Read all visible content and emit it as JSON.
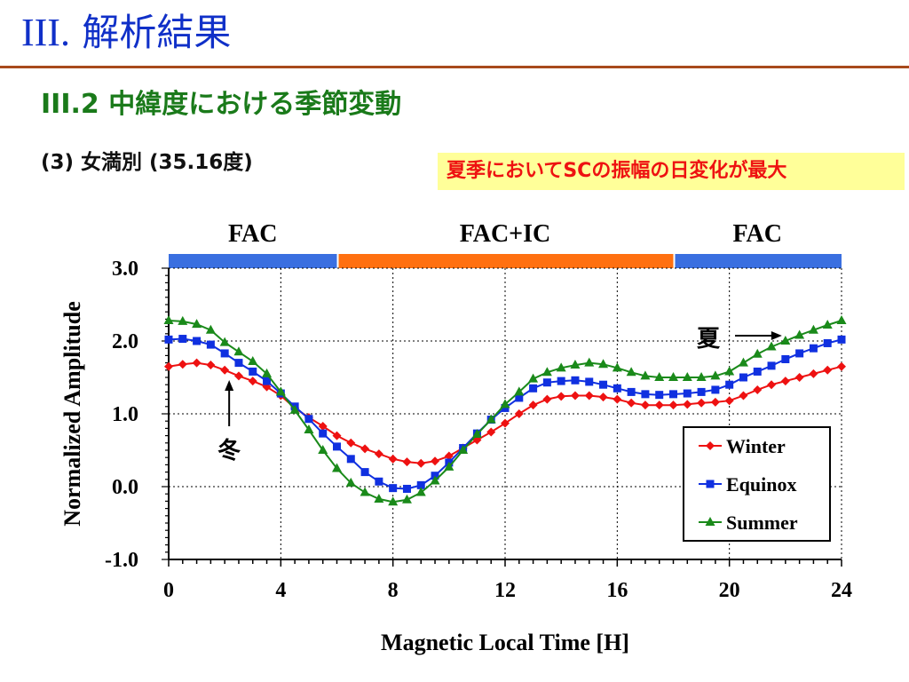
{
  "slide": {
    "title_prefix": "III.",
    "title_main": "解析結果",
    "subtitle": "III.2 中緯度における季節変動",
    "section": "(3) 女満別 (35.16度)",
    "callout": "夏季においてSCの振幅の日変化が最大"
  },
  "colors": {
    "title": "#1030c8",
    "subtitle": "#1a7a1a",
    "rule": "#a84a1c",
    "callout_bg": "#ffff99",
    "callout_text": "#ee1111",
    "fac_band": "#3a6fe0",
    "fac_ic_band": "#ff7010"
  },
  "chart_data": {
    "type": "line",
    "xlabel": "Magnetic Local Time [H]",
    "ylabel": "Normalized Amplitude",
    "xlim": [
      0,
      24
    ],
    "ylim": [
      -1.0,
      3.0
    ],
    "xticks": [
      "0",
      "4",
      "8",
      "12",
      "16",
      "20",
      "24"
    ],
    "yticks": [
      "3.0",
      "2.0",
      "1.0",
      "0.0",
      "-1.0"
    ],
    "grid": "dotted",
    "regions": [
      {
        "label": "FAC",
        "start": 0,
        "end": 6,
        "color": "#3a6fe0"
      },
      {
        "label": "FAC+IC",
        "start": 6,
        "end": 18,
        "color": "#ff7010"
      },
      {
        "label": "FAC",
        "start": 18,
        "end": 24,
        "color": "#3a6fe0"
      }
    ],
    "annotations": [
      {
        "text": "夏",
        "x": 20.5,
        "y": 2.0,
        "arrow_to": [
          22.0,
          2.05
        ]
      },
      {
        "text": "冬",
        "x": 2.0,
        "y": 0.55,
        "arrow_to": [
          2.0,
          1.4
        ]
      }
    ],
    "legend": "bottom-right",
    "x": [
      0,
      0.5,
      1,
      1.5,
      2,
      2.5,
      3,
      3.5,
      4,
      4.5,
      5,
      5.5,
      6,
      6.5,
      7,
      7.5,
      8,
      8.5,
      9,
      9.5,
      10,
      10.5,
      11,
      11.5,
      12,
      12.5,
      13,
      13.5,
      14,
      14.5,
      15,
      15.5,
      16,
      16.5,
      17,
      17.5,
      18,
      18.5,
      19,
      19.5,
      20,
      20.5,
      21,
      21.5,
      22,
      22.5,
      23,
      23.5,
      24
    ],
    "series": [
      {
        "name": "Winter",
        "color": "#ee1111",
        "marker": "diamond",
        "values": [
          1.65,
          1.68,
          1.7,
          1.67,
          1.6,
          1.52,
          1.45,
          1.37,
          1.25,
          1.08,
          0.95,
          0.83,
          0.7,
          0.6,
          0.52,
          0.45,
          0.38,
          0.34,
          0.32,
          0.35,
          0.42,
          0.53,
          0.64,
          0.75,
          0.87,
          1.0,
          1.12,
          1.2,
          1.24,
          1.25,
          1.25,
          1.23,
          1.2,
          1.15,
          1.12,
          1.12,
          1.12,
          1.13,
          1.15,
          1.16,
          1.18,
          1.25,
          1.33,
          1.4,
          1.45,
          1.5,
          1.55,
          1.6,
          1.65
        ]
      },
      {
        "name": "Equinox",
        "color": "#1030e0",
        "marker": "square",
        "values": [
          2.02,
          2.03,
          2.0,
          1.95,
          1.83,
          1.7,
          1.58,
          1.45,
          1.28,
          1.1,
          0.93,
          0.73,
          0.55,
          0.38,
          0.2,
          0.07,
          -0.02,
          -0.03,
          0.02,
          0.15,
          0.33,
          0.53,
          0.73,
          0.92,
          1.08,
          1.22,
          1.35,
          1.43,
          1.45,
          1.46,
          1.44,
          1.4,
          1.35,
          1.3,
          1.27,
          1.26,
          1.27,
          1.28,
          1.3,
          1.33,
          1.4,
          1.5,
          1.58,
          1.66,
          1.75,
          1.83,
          1.9,
          1.97,
          2.02
        ]
      },
      {
        "name": "Summer",
        "color": "#1a8a1a",
        "marker": "triangle",
        "values": [
          2.28,
          2.27,
          2.23,
          2.15,
          1.98,
          1.85,
          1.72,
          1.55,
          1.3,
          1.05,
          0.78,
          0.5,
          0.25,
          0.05,
          -0.08,
          -0.17,
          -0.21,
          -0.18,
          -0.08,
          0.08,
          0.27,
          0.5,
          0.72,
          0.92,
          1.13,
          1.3,
          1.48,
          1.57,
          1.63,
          1.67,
          1.7,
          1.68,
          1.63,
          1.57,
          1.52,
          1.5,
          1.5,
          1.5,
          1.5,
          1.52,
          1.58,
          1.7,
          1.82,
          1.92,
          2.0,
          2.08,
          2.15,
          2.22,
          2.28
        ]
      }
    ]
  }
}
